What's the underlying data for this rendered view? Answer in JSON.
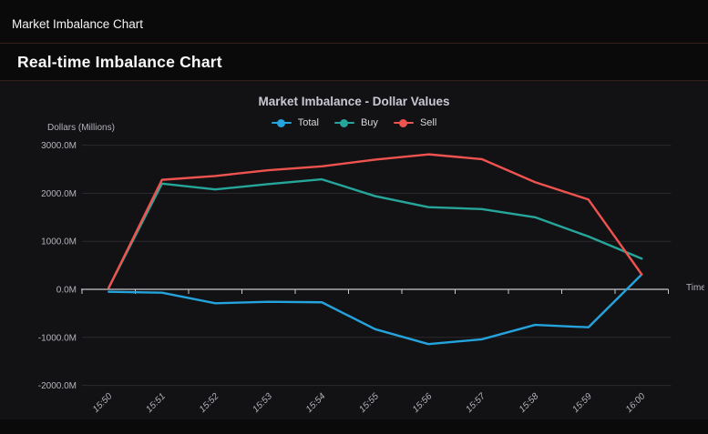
{
  "window": {
    "title": "Market Imbalance Chart",
    "subtitle": "Real-time Imbalance Chart"
  },
  "chart_data": {
    "type": "line",
    "title": "Market Imbalance - Dollar Values",
    "ylabel": "Dollars (Millions)",
    "xlabel": "Time",
    "categories": [
      "15:50",
      "15:51",
      "15:52",
      "15:53",
      "15:54",
      "15:55",
      "15:56",
      "15:57",
      "15:58",
      "15:59",
      "16:00"
    ],
    "series": [
      {
        "name": "Total",
        "color": "#24a3dc",
        "values": [
          -50,
          -70,
          -290,
          -260,
          -270,
          -830,
          -1140,
          -1040,
          -740,
          -790,
          310
        ]
      },
      {
        "name": "Buy",
        "color": "#26a69a",
        "values": [
          30,
          2200,
          2080,
          2190,
          2290,
          1940,
          1710,
          1670,
          1500,
          1100,
          640
        ]
      },
      {
        "name": "Sell",
        "color": "#ef5350",
        "values": [
          30,
          2280,
          2360,
          2480,
          2560,
          2700,
          2810,
          2710,
          2230,
          1870,
          310
        ]
      }
    ],
    "ylim": [
      -2000,
      3000
    ],
    "yticks": [
      3000,
      2000,
      1000,
      0,
      -1000,
      -2000
    ],
    "ytick_labels": [
      "3000.0M",
      "2000.0M",
      "1000.0M",
      "0.0M",
      "-1000.0M",
      "-2000.0M"
    ],
    "grid": true,
    "legend_position": "top",
    "x_labels_rotated_degrees": -45
  },
  "theme": {
    "background": "#0a0a0b",
    "panel": "#121214",
    "divider": "#341e1e",
    "grid": "#2b2b2f",
    "axis": "#c9c9ce",
    "text_primary": "#f4f4f6",
    "text_muted": "#b3b3bb",
    "title": "#c9c9d6",
    "legend_label": "#d8d8da",
    "series_total": "#24a3dc",
    "series_buy": "#26a69a",
    "series_sell": "#ef5350"
  }
}
